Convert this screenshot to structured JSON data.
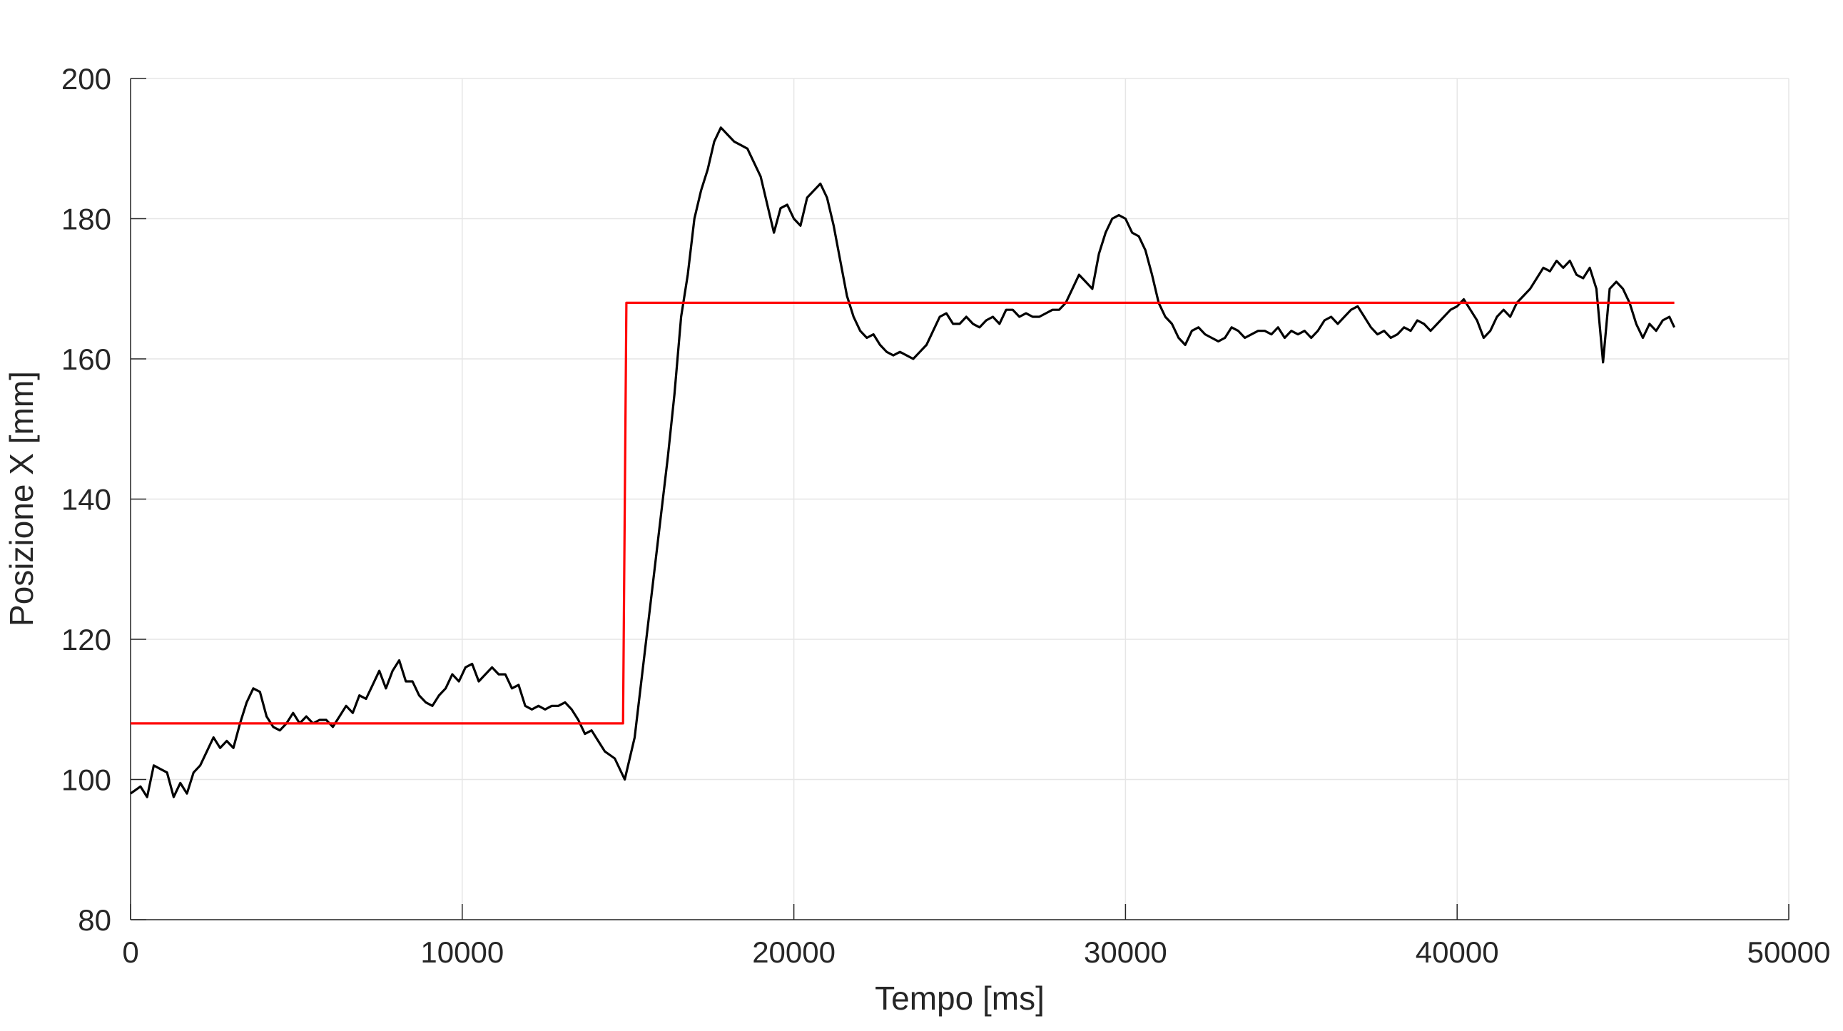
{
  "chart_data": {
    "type": "line",
    "xlabel": "Tempo [ms]",
    "ylabel": "Posizione X [mm]",
    "xlim": [
      0,
      50000
    ],
    "ylim": [
      80,
      200
    ],
    "xticks": [
      0,
      10000,
      20000,
      30000,
      40000,
      50000
    ],
    "yticks": [
      80,
      100,
      120,
      140,
      160,
      180,
      200
    ],
    "grid": true,
    "legend": "none",
    "series": [
      {
        "color": "#000000",
        "role": "measured",
        "points": [
          [
            0,
            98
          ],
          [
            300,
            99
          ],
          [
            500,
            97.5
          ],
          [
            700,
            102
          ],
          [
            900,
            101.5
          ],
          [
            1100,
            101
          ],
          [
            1300,
            97.5
          ],
          [
            1500,
            99.5
          ],
          [
            1700,
            98
          ],
          [
            1900,
            101
          ],
          [
            2100,
            102
          ],
          [
            2300,
            104
          ],
          [
            2500,
            106
          ],
          [
            2700,
            104.5
          ],
          [
            2900,
            105.5
          ],
          [
            3100,
            104.5
          ],
          [
            3300,
            108
          ],
          [
            3500,
            111
          ],
          [
            3700,
            113
          ],
          [
            3900,
            112.5
          ],
          [
            4100,
            109
          ],
          [
            4300,
            107.5
          ],
          [
            4500,
            107
          ],
          [
            4700,
            108
          ],
          [
            4900,
            109.5
          ],
          [
            5100,
            108
          ],
          [
            5300,
            109
          ],
          [
            5500,
            108
          ],
          [
            5700,
            108.5
          ],
          [
            5900,
            108.5
          ],
          [
            6100,
            107.5
          ],
          [
            6300,
            109
          ],
          [
            6500,
            110.5
          ],
          [
            6700,
            109.5
          ],
          [
            6900,
            112
          ],
          [
            7100,
            111.5
          ],
          [
            7300,
            113.5
          ],
          [
            7500,
            115.5
          ],
          [
            7700,
            113
          ],
          [
            7900,
            115.5
          ],
          [
            8100,
            117
          ],
          [
            8300,
            114
          ],
          [
            8500,
            114
          ],
          [
            8700,
            112
          ],
          [
            8900,
            111
          ],
          [
            9100,
            110.5
          ],
          [
            9300,
            112
          ],
          [
            9500,
            113
          ],
          [
            9700,
            115
          ],
          [
            9900,
            114
          ],
          [
            10100,
            116
          ],
          [
            10300,
            116.5
          ],
          [
            10500,
            114
          ],
          [
            10700,
            115
          ],
          [
            10900,
            116
          ],
          [
            11100,
            115
          ],
          [
            11300,
            115
          ],
          [
            11500,
            113
          ],
          [
            11700,
            113.5
          ],
          [
            11900,
            110.5
          ],
          [
            12100,
            110
          ],
          [
            12300,
            110.5
          ],
          [
            12500,
            110
          ],
          [
            12700,
            110.5
          ],
          [
            12900,
            110.5
          ],
          [
            13100,
            111
          ],
          [
            13300,
            110
          ],
          [
            13500,
            108.5
          ],
          [
            13700,
            106.5
          ],
          [
            13900,
            107
          ],
          [
            14100,
            105.5
          ],
          [
            14300,
            104
          ],
          [
            14600,
            103
          ],
          [
            14900,
            100
          ],
          [
            15200,
            106
          ],
          [
            15400,
            114
          ],
          [
            15600,
            122
          ],
          [
            15800,
            130
          ],
          [
            16000,
            138
          ],
          [
            16200,
            146
          ],
          [
            16400,
            155
          ],
          [
            16600,
            166
          ],
          [
            16800,
            172
          ],
          [
            17000,
            180
          ],
          [
            17200,
            184
          ],
          [
            17400,
            187
          ],
          [
            17600,
            191
          ],
          [
            17800,
            193
          ],
          [
            18000,
            192
          ],
          [
            18200,
            191
          ],
          [
            18400,
            190.5
          ],
          [
            18600,
            190
          ],
          [
            18800,
            188
          ],
          [
            19000,
            186
          ],
          [
            19200,
            182
          ],
          [
            19400,
            178
          ],
          [
            19600,
            181.5
          ],
          [
            19800,
            182
          ],
          [
            20000,
            180
          ],
          [
            20200,
            179
          ],
          [
            20400,
            183
          ],
          [
            20600,
            184
          ],
          [
            20800,
            185
          ],
          [
            21000,
            183
          ],
          [
            21200,
            179
          ],
          [
            21400,
            174
          ],
          [
            21600,
            169
          ],
          [
            21800,
            166
          ],
          [
            22000,
            164
          ],
          [
            22200,
            163
          ],
          [
            22400,
            163.5
          ],
          [
            22600,
            162
          ],
          [
            22800,
            161
          ],
          [
            23000,
            160.5
          ],
          [
            23200,
            161
          ],
          [
            23400,
            160.5
          ],
          [
            23600,
            160
          ],
          [
            23800,
            161
          ],
          [
            24000,
            162
          ],
          [
            24200,
            164
          ],
          [
            24400,
            166
          ],
          [
            24600,
            166.5
          ],
          [
            24800,
            165
          ],
          [
            25000,
            165
          ],
          [
            25200,
            166
          ],
          [
            25400,
            165
          ],
          [
            25600,
            164.5
          ],
          [
            25800,
            165.5
          ],
          [
            26000,
            166
          ],
          [
            26200,
            165
          ],
          [
            26400,
            167
          ],
          [
            26600,
            167
          ],
          [
            26800,
            166
          ],
          [
            27000,
            166.5
          ],
          [
            27200,
            166
          ],
          [
            27400,
            166
          ],
          [
            27600,
            166.5
          ],
          [
            27800,
            167
          ],
          [
            28000,
            167
          ],
          [
            28200,
            168
          ],
          [
            28400,
            170
          ],
          [
            28600,
            172
          ],
          [
            28800,
            171
          ],
          [
            29000,
            170
          ],
          [
            29200,
            175
          ],
          [
            29400,
            178
          ],
          [
            29600,
            180
          ],
          [
            29800,
            180.5
          ],
          [
            30000,
            180
          ],
          [
            30200,
            178
          ],
          [
            30400,
            177.5
          ],
          [
            30600,
            175.5
          ],
          [
            30800,
            172
          ],
          [
            31000,
            168
          ],
          [
            31200,
            166
          ],
          [
            31400,
            165
          ],
          [
            31600,
            163
          ],
          [
            31800,
            162
          ],
          [
            32000,
            164
          ],
          [
            32200,
            164.5
          ],
          [
            32400,
            163.5
          ],
          [
            32600,
            163
          ],
          [
            32800,
            162.5
          ],
          [
            33000,
            163
          ],
          [
            33200,
            164.5
          ],
          [
            33400,
            164
          ],
          [
            33600,
            163
          ],
          [
            33800,
            163.5
          ],
          [
            34000,
            164
          ],
          [
            34200,
            164
          ],
          [
            34400,
            163.5
          ],
          [
            34600,
            164.5
          ],
          [
            34800,
            163
          ],
          [
            35000,
            164
          ],
          [
            35200,
            163.5
          ],
          [
            35400,
            164
          ],
          [
            35600,
            163
          ],
          [
            35800,
            164
          ],
          [
            36000,
            165.5
          ],
          [
            36200,
            166
          ],
          [
            36400,
            165
          ],
          [
            36600,
            166
          ],
          [
            36800,
            167
          ],
          [
            37000,
            167.5
          ],
          [
            37200,
            166
          ],
          [
            37400,
            164.5
          ],
          [
            37600,
            163.5
          ],
          [
            37800,
            164
          ],
          [
            38000,
            163
          ],
          [
            38200,
            163.5
          ],
          [
            38400,
            164.5
          ],
          [
            38600,
            164
          ],
          [
            38800,
            165.5
          ],
          [
            39000,
            165
          ],
          [
            39200,
            164
          ],
          [
            39400,
            165
          ],
          [
            39600,
            166
          ],
          [
            39800,
            167
          ],
          [
            40000,
            167.5
          ],
          [
            40200,
            168.5
          ],
          [
            40400,
            167
          ],
          [
            40600,
            165.5
          ],
          [
            40800,
            163
          ],
          [
            41000,
            164
          ],
          [
            41200,
            166
          ],
          [
            41400,
            167
          ],
          [
            41600,
            166
          ],
          [
            41800,
            168
          ],
          [
            42000,
            169
          ],
          [
            42200,
            170
          ],
          [
            42400,
            171.5
          ],
          [
            42600,
            173
          ],
          [
            42800,
            172.5
          ],
          [
            43000,
            174
          ],
          [
            43200,
            173
          ],
          [
            43400,
            174
          ],
          [
            43600,
            172
          ],
          [
            43800,
            171.5
          ],
          [
            44000,
            173
          ],
          [
            44200,
            170
          ],
          [
            44400,
            159.5
          ],
          [
            44600,
            170
          ],
          [
            44800,
            171
          ],
          [
            45000,
            170
          ],
          [
            45200,
            168
          ],
          [
            45400,
            165
          ],
          [
            45600,
            163
          ],
          [
            45800,
            165
          ],
          [
            46000,
            164
          ],
          [
            46200,
            165.5
          ],
          [
            46400,
            166
          ],
          [
            46550,
            164.5
          ]
        ]
      },
      {
        "color": "#ff0000",
        "role": "setpoint",
        "points": [
          [
            0,
            108
          ],
          [
            14850,
            108
          ],
          [
            14950,
            168
          ],
          [
            46550,
            168
          ]
        ]
      }
    ]
  }
}
